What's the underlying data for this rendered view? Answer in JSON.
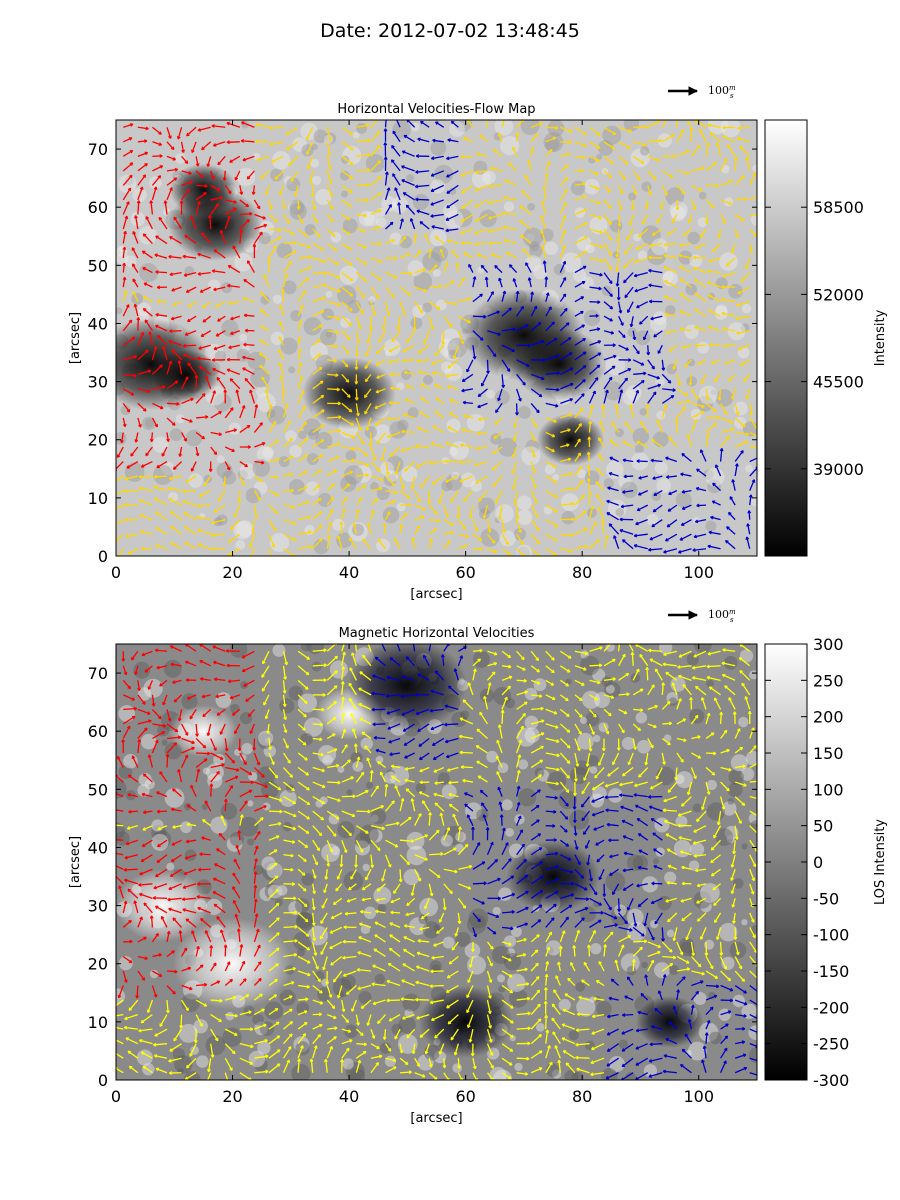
{
  "figure": {
    "suptitle": "Date: 2012-07-02 13:48:45"
  },
  "chart_data": [
    {
      "type": "heatmap",
      "title": "Horizontal Velocities-Flow Map",
      "xlabel": "[arcsec]",
      "ylabel": "[arcsec]",
      "xlim": [
        0,
        110
      ],
      "ylim": [
        0,
        75
      ],
      "xticks": [
        0,
        20,
        40,
        60,
        80,
        100
      ],
      "yticks": [
        0,
        10,
        20,
        30,
        40,
        50,
        60,
        70
      ],
      "colormap": "gray",
      "colorbar": {
        "label": "Intensity",
        "range": [
          32500,
          65000
        ],
        "ticks": [
          39000,
          45500,
          52000,
          58500
        ]
      },
      "overlay": "horizontal velocity vectors (yellow, red, blue)",
      "quiver_key": {
        "label": "100 m/s",
        "text": "100",
        "unit_num": "m",
        "unit_den": "s"
      },
      "vector_colors": {
        "main": "#ffd700",
        "positive": "#ff0000",
        "negative": "#0000cc"
      },
      "features": [
        {
          "kind": "dark",
          "x": 15,
          "y": 63
        },
        {
          "kind": "dark",
          "x": 17,
          "y": 57
        },
        {
          "kind": "dark",
          "x": 6,
          "y": 33
        },
        {
          "kind": "dark",
          "x": 12,
          "y": 31
        },
        {
          "kind": "dark",
          "x": 76,
          "y": 33
        },
        {
          "kind": "dark",
          "x": 70,
          "y": 38
        },
        {
          "kind": "dark",
          "x": 78,
          "y": 20
        },
        {
          "kind": "dark",
          "x": 40,
          "y": 28
        }
      ]
    },
    {
      "type": "heatmap",
      "title": "Magnetic Horizontal Velocities",
      "xlabel": "[arcsec]",
      "ylabel": "[arcsec]",
      "xlim": [
        0,
        110
      ],
      "ylim": [
        0,
        75
      ],
      "xticks": [
        0,
        20,
        40,
        60,
        80,
        100
      ],
      "yticks": [
        0,
        10,
        20,
        30,
        40,
        50,
        60,
        70
      ],
      "colormap": "gray",
      "colorbar": {
        "label": "LOS Intensity",
        "range": [
          -300,
          300
        ],
        "ticks": [
          300,
          250,
          200,
          150,
          100,
          50,
          0,
          -50,
          -100,
          -150,
          -200,
          -250,
          -300
        ]
      },
      "overlay": "horizontal velocity vectors (yellow, red, blue)",
      "quiver_key": {
        "label": "100 m/s",
        "text": "100",
        "unit_num": "m",
        "unit_den": "s"
      },
      "vector_colors": {
        "main": "#ffff00",
        "positive": "#ff0000",
        "negative": "#0000cc"
      },
      "features": [
        {
          "kind": "positive",
          "x": 15,
          "y": 60
        },
        {
          "kind": "positive",
          "x": 8,
          "y": 30
        },
        {
          "kind": "positive",
          "x": 20,
          "y": 20
        },
        {
          "kind": "positive",
          "x": 40,
          "y": 63
        },
        {
          "kind": "negative",
          "x": 75,
          "y": 35
        },
        {
          "kind": "negative",
          "x": 50,
          "y": 68
        },
        {
          "kind": "negative",
          "x": 95,
          "y": 10
        },
        {
          "kind": "negative",
          "x": 60,
          "y": 10
        }
      ]
    }
  ]
}
